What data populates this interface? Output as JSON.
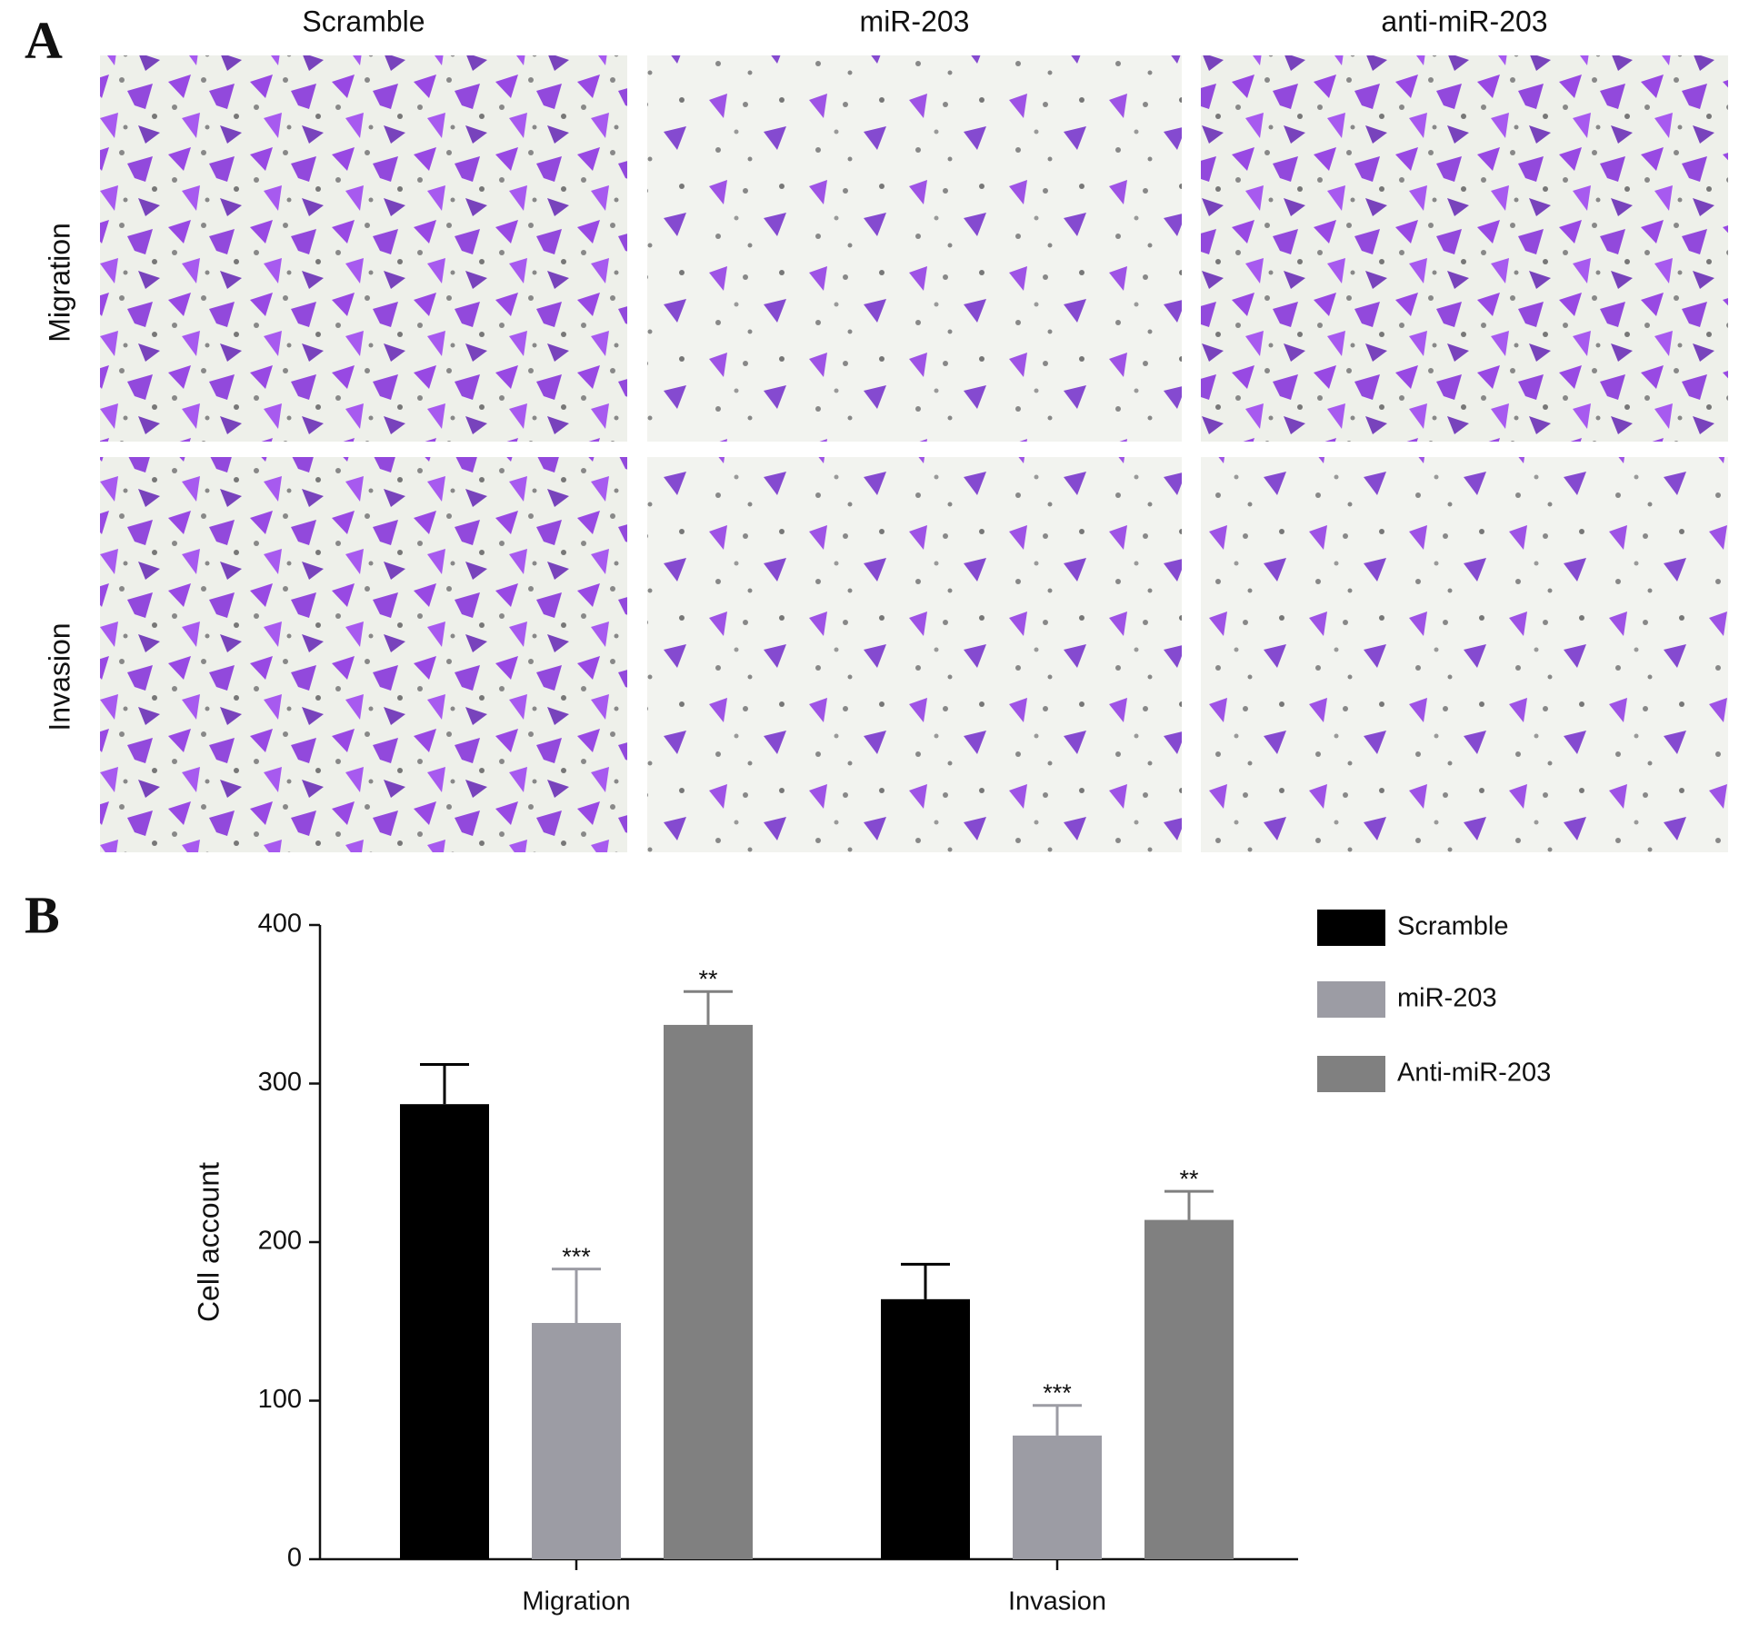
{
  "panel_a": {
    "label": "A",
    "columns": [
      "Scramble",
      "miR-203",
      "anti-miR-203"
    ],
    "rows": [
      "Migration",
      "Invasion"
    ]
  },
  "panel_b": {
    "label": "B"
  },
  "chart_data": {
    "type": "bar",
    "ylabel": "Cell account",
    "categories": [
      "Migration",
      "Invasion"
    ],
    "series": [
      {
        "name": "Scramble",
        "color": "#000000",
        "values": [
          287,
          164
        ],
        "errors": [
          25,
          22
        ]
      },
      {
        "name": "miR-203",
        "color": "#9c9ca4",
        "values": [
          149,
          78
        ],
        "errors": [
          34,
          19
        ],
        "significance": [
          "***",
          "***"
        ]
      },
      {
        "name": "Anti-miR-203",
        "color": "#808080",
        "values": [
          337,
          214
        ],
        "errors": [
          21,
          18
        ],
        "significance": [
          "**",
          "**"
        ]
      }
    ],
    "ylim": [
      0,
      400
    ],
    "yticks": [
      0,
      100,
      200,
      300,
      400
    ],
    "grid": false,
    "legend": "upper right"
  }
}
